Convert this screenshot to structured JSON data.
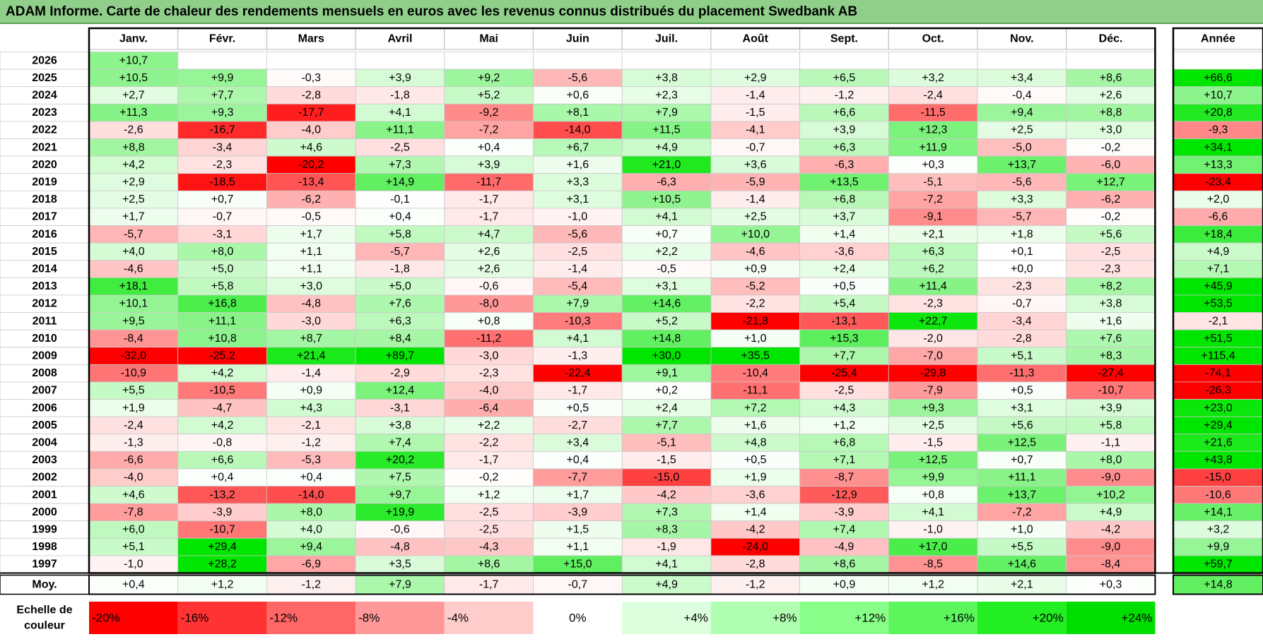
{
  "title": "ADAM Informe. Carte de chaleur des rendements mensuels en euros avec les revenus connus distribués du placement Swedbank AB",
  "colors": {
    "title_bg": "#8fcf8a",
    "negative_max": "#ff0000",
    "neutral": "#ffffff",
    "positive_max": "#00ee00"
  },
  "chart_data": {
    "type": "heatmap",
    "title": "ADAM Informe. Carte de chaleur des rendements mensuels en euros avec les revenus connus distribués du placement Swedbank AB",
    "columns": [
      "Janv.",
      "Févr.",
      "Mars",
      "Avril",
      "Mai",
      "Juin",
      "Juil.",
      "Août",
      "Sept.",
      "Oct.",
      "Nov.",
      "Déc."
    ],
    "year_column_label": "Année",
    "rows": [
      {
        "year": "2026",
        "months": [
          "+10,7",
          "",
          "",
          "",
          "",
          "",
          "",
          "",
          "",
          "",
          "",
          ""
        ],
        "annual": ""
      },
      {
        "year": "2025",
        "months": [
          "+10,5",
          "+9,9",
          "-0,3",
          "+3,9",
          "+9,2",
          "-5,6",
          "+3,8",
          "+2,9",
          "+6,5",
          "+3,2",
          "+3,4",
          "+8,6"
        ],
        "annual": "+66,6"
      },
      {
        "year": "2024",
        "months": [
          "+2,7",
          "+7,7",
          "-2,8",
          "-1,8",
          "+5,2",
          "+0,6",
          "+2,3",
          "-1,4",
          "-1,2",
          "-2,4",
          "-0,4",
          "+2,6"
        ],
        "annual": "+10,7"
      },
      {
        "year": "2023",
        "months": [
          "+11,3",
          "+9,3",
          "-17,7",
          "+4,1",
          "-9,2",
          "+8,1",
          "+7,9",
          "-1,5",
          "+6,6",
          "-11,5",
          "+9,4",
          "+8,8"
        ],
        "annual": "+20,8"
      },
      {
        "year": "2022",
        "months": [
          "-2,6",
          "-16,7",
          "-4,0",
          "+11,1",
          "-7,2",
          "-14,0",
          "+11,5",
          "-4,1",
          "+3,9",
          "+12,3",
          "+2,5",
          "+3,0"
        ],
        "annual": "-9,3"
      },
      {
        "year": "2021",
        "months": [
          "+8,8",
          "-3,4",
          "+4,6",
          "-2,5",
          "+0,4",
          "+6,7",
          "+4,9",
          "-0,7",
          "+6,3",
          "+11,9",
          "-5,0",
          "-0,2"
        ],
        "annual": "+34,1"
      },
      {
        "year": "2020",
        "months": [
          "+4,2",
          "-2,3",
          "-20,2",
          "+7,3",
          "+3,9",
          "+1,6",
          "+21,0",
          "+3,6",
          "-6,3",
          "+0,3",
          "+13,7",
          "-6,0"
        ],
        "annual": "+13,3"
      },
      {
        "year": "2019",
        "months": [
          "+2,9",
          "-18,5",
          "-13,4",
          "+14,9",
          "-11,7",
          "+3,3",
          "-6,3",
          "-5,9",
          "+13,5",
          "-5,1",
          "-5,6",
          "+12,7"
        ],
        "annual": "-23,4"
      },
      {
        "year": "2018",
        "months": [
          "+2,5",
          "+0,7",
          "-6,2",
          "-0,1",
          "-1,7",
          "+3,1",
          "+10,5",
          "-1,4",
          "+6,8",
          "-7,2",
          "+3,3",
          "-6,2"
        ],
        "annual": "+2,0"
      },
      {
        "year": "2017",
        "months": [
          "+1,7",
          "-0,7",
          "-0,5",
          "+0,4",
          "-1,7",
          "-1,0",
          "+4,1",
          "+2,5",
          "+3,7",
          "-9,1",
          "-5,7",
          "-0,2"
        ],
        "annual": "-6,6"
      },
      {
        "year": "2016",
        "months": [
          "-5,7",
          "-3,1",
          "+1,7",
          "+5,8",
          "+4,7",
          "-5,6",
          "+0,7",
          "+10,0",
          "+1,4",
          "+2,1",
          "+1,8",
          "+5,6"
        ],
        "annual": "+18,4"
      },
      {
        "year": "2015",
        "months": [
          "+4,0",
          "+8,0",
          "+1,1",
          "-5,7",
          "+2,6",
          "-2,5",
          "+2,2",
          "-4,6",
          "-3,6",
          "+6,3",
          "+0,1",
          "-2,5"
        ],
        "annual": "+4,9"
      },
      {
        "year": "2014",
        "months": [
          "-4,6",
          "+5,0",
          "+1,1",
          "-1,8",
          "+2,6",
          "-1,4",
          "-0,5",
          "+0,9",
          "+2,4",
          "+6,2",
          "+0,0",
          "-2,3"
        ],
        "annual": "+7,1"
      },
      {
        "year": "2013",
        "months": [
          "+18,1",
          "+5,8",
          "+3,0",
          "+5,0",
          "-0,6",
          "-5,4",
          "+3,1",
          "-5,2",
          "+0,5",
          "+11,4",
          "-2,3",
          "+8,2"
        ],
        "annual": "+45,9"
      },
      {
        "year": "2012",
        "months": [
          "+10,1",
          "+16,8",
          "-4,8",
          "+7,6",
          "-8,0",
          "+7,9",
          "+14,6",
          "-2,2",
          "+5,4",
          "-2,3",
          "-0,7",
          "+3,8"
        ],
        "annual": "+53,5"
      },
      {
        "year": "2011",
        "months": [
          "+9,5",
          "+11,1",
          "-3,0",
          "+6,3",
          "+0,8",
          "-10,3",
          "+5,2",
          "-21,8",
          "-13,1",
          "+22,7",
          "-3,4",
          "+1,6"
        ],
        "annual": "-2,1"
      },
      {
        "year": "2010",
        "months": [
          "-8,4",
          "+10,8",
          "+8,7",
          "+8,4",
          "-11,2",
          "+4,1",
          "+14,8",
          "+1,0",
          "+15,3",
          "-2,0",
          "-2,8",
          "+7,6"
        ],
        "annual": "+51,5"
      },
      {
        "year": "2009",
        "months": [
          "-32,0",
          "-25,2",
          "+21,4",
          "+89,7",
          "-3,0",
          "-1,3",
          "+30,0",
          "+35,5",
          "+7,7",
          "-7,0",
          "+5,1",
          "+8,3"
        ],
        "annual": "+115,4"
      },
      {
        "year": "2008",
        "months": [
          "-10,9",
          "+4,2",
          "-1,4",
          "-2,9",
          "-2,3",
          "-22,4",
          "+9,1",
          "-10,4",
          "-25,4",
          "-29,8",
          "-11,3",
          "-27,4"
        ],
        "annual": "-74,1"
      },
      {
        "year": "2007",
        "months": [
          "+5,5",
          "-10,5",
          "+0,9",
          "+12,4",
          "-4,0",
          "-1,7",
          "+0,2",
          "-11,1",
          "-2,5",
          "-7,9",
          "+0,5",
          "-10,7"
        ],
        "annual": "-26,3"
      },
      {
        "year": "2006",
        "months": [
          "+1,9",
          "-4,7",
          "+4,3",
          "-3,1",
          "-6,4",
          "+0,5",
          "+2,4",
          "+7,2",
          "+4,3",
          "+9,3",
          "+3,1",
          "+3,9"
        ],
        "annual": "+23,0"
      },
      {
        "year": "2005",
        "months": [
          "-2,4",
          "+4,2",
          "-2,1",
          "+3,8",
          "+2,2",
          "-2,7",
          "+7,7",
          "+1,6",
          "+1,2",
          "+2,5",
          "+5,6",
          "+5,8"
        ],
        "annual": "+29,4"
      },
      {
        "year": "2004",
        "months": [
          "-1,3",
          "-0,8",
          "-1,2",
          "+7,4",
          "-2,2",
          "+3,4",
          "-5,1",
          "+4,8",
          "+6,8",
          "-1,5",
          "+12,5",
          "-1,1"
        ],
        "annual": "+21,6"
      },
      {
        "year": "2003",
        "months": [
          "-6,6",
          "+6,6",
          "-5,3",
          "+20,2",
          "-1,7",
          "+0,4",
          "-1,5",
          "+0,5",
          "+7,1",
          "+12,5",
          "+0,7",
          "+8,0"
        ],
        "annual": "+43,8"
      },
      {
        "year": "2002",
        "months": [
          "-4,0",
          "+0,4",
          "+0,4",
          "+7,5",
          "-0,2",
          "-7,7",
          "-15,0",
          "+1,9",
          "-8,7",
          "+9,9",
          "+11,1",
          "-9,0"
        ],
        "annual": "-15,0"
      },
      {
        "year": "2001",
        "months": [
          "+4,6",
          "-13,2",
          "-14,0",
          "+9,7",
          "+1,2",
          "+1,7",
          "-4,2",
          "-3,6",
          "-12,9",
          "+0,8",
          "+13,7",
          "+10,2"
        ],
        "annual": "-10,6"
      },
      {
        "year": "2000",
        "months": [
          "-7,8",
          "-3,9",
          "+8,0",
          "+19,9",
          "-2,5",
          "-3,9",
          "+7,3",
          "+1,4",
          "-3,9",
          "+4,1",
          "-7,2",
          "+4,9"
        ],
        "annual": "+14,1"
      },
      {
        "year": "1999",
        "months": [
          "+6,0",
          "-10,7",
          "+4,0",
          "-0,6",
          "-2,5",
          "+1,5",
          "+8,3",
          "-4,2",
          "+7,4",
          "-1,0",
          "+1,0",
          "-4,2"
        ],
        "annual": "+3,2"
      },
      {
        "year": "1998",
        "months": [
          "+5,1",
          "+29,4",
          "+9,4",
          "-4,8",
          "-4,3",
          "+1,1",
          "-1,9",
          "-24,0",
          "-4,9",
          "+17,0",
          "+5,5",
          "-9,0"
        ],
        "annual": "+9,9"
      },
      {
        "year": "1997",
        "months": [
          "-1,0",
          "+28,2",
          "-6,9",
          "+3,5",
          "+8,6",
          "+15,0",
          "+4,1",
          "-2,8",
          "+8,6",
          "-8,5",
          "+14,6",
          "-8,4"
        ],
        "annual": "+59,7"
      }
    ],
    "average": {
      "label": "Moy.",
      "months": [
        "+0,4",
        "+1,2",
        "-1,2",
        "+7,9",
        "-1,7",
        "-0,7",
        "+4,9",
        "-1,2",
        "+0,9",
        "+1,2",
        "+2,1",
        "+0,3"
      ],
      "annual": "+14,8"
    },
    "scale": {
      "label_line1": "Echelle de",
      "label_line2": "couleur",
      "items": [
        {
          "label": "-20%",
          "value": -20,
          "color": "#ff0000"
        },
        {
          "label": "-16%",
          "value": -16,
          "color": "#ff3333"
        },
        {
          "label": "-12%",
          "value": -12,
          "color": "#ff6666"
        },
        {
          "label": "-8%",
          "value": -8,
          "color": "#ff9999"
        },
        {
          "label": "-4%",
          "value": -4,
          "color": "#ffcccc"
        },
        {
          "label": "0%",
          "value": 0,
          "color": "#ffffff"
        },
        {
          "label": "+4%",
          "value": 4,
          "color": "#ddffdd"
        },
        {
          "label": "+8%",
          "value": 8,
          "color": "#b0ffb0"
        },
        {
          "label": "+12%",
          "value": 12,
          "color": "#88ff88"
        },
        {
          "label": "+16%",
          "value": 16,
          "color": "#5cf55c"
        },
        {
          "label": "+20%",
          "value": 20,
          "color": "#22ee22"
        },
        {
          "label": "+24%",
          "value": 24,
          "color": "#00dd00"
        }
      ]
    }
  }
}
